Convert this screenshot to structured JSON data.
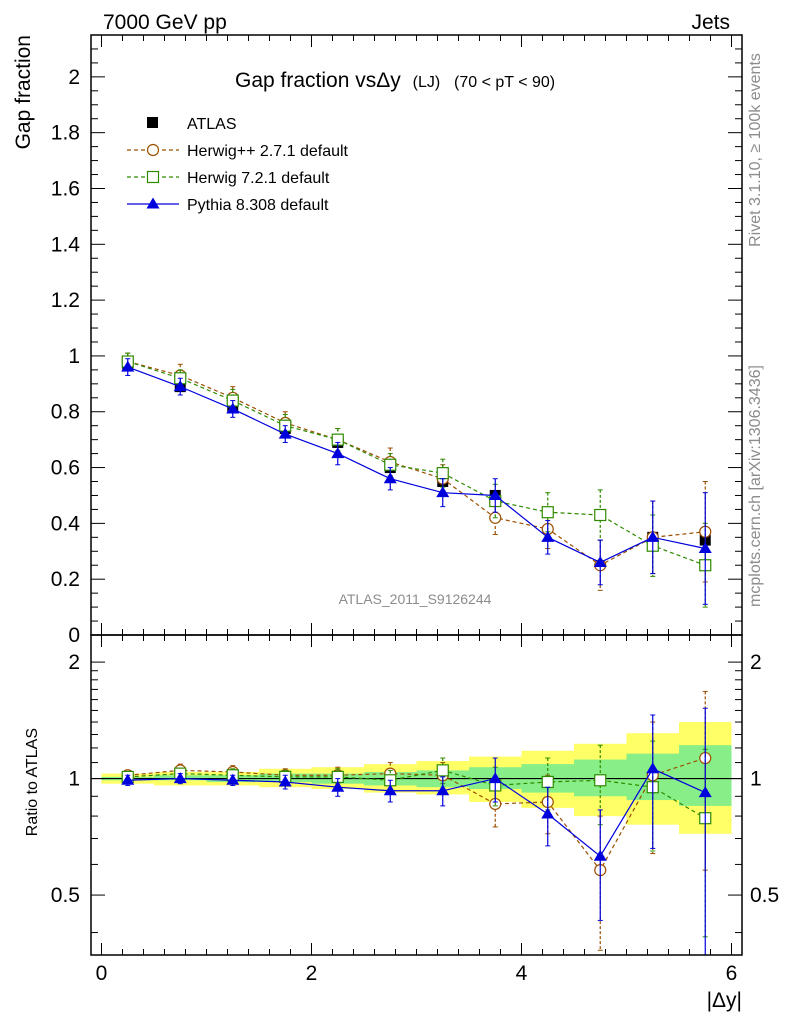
{
  "header": {
    "left": "7000 GeV pp",
    "right": "Jets"
  },
  "side_labels": {
    "rivet": "Rivet 3.1.10, ≥ 100k events",
    "mcplots": "mcplots.cern.ch [arXiv:1306.3436]"
  },
  "watermark": "ATLAS_2011_S9126244",
  "title_main": "Gap fraction vsΔy",
  "title_tag": "(LJ)",
  "title_range": "(70 < pT <  90)",
  "chart_data": [
    {
      "type": "line",
      "panel": "main",
      "ylabel": "Gap fraction",
      "xlim": [
        -0.1,
        6.1
      ],
      "ylim": [
        0,
        2.15
      ],
      "yticks": [
        "0",
        "0.2",
        "0.4",
        "0.6",
        "0.8",
        "1",
        "1.2",
        "1.4",
        "1.6",
        "1.8",
        "2"
      ],
      "legend_position": "top-left",
      "x": [
        0.25,
        0.75,
        1.25,
        1.75,
        2.25,
        2.75,
        3.25,
        3.75,
        4.25,
        4.75,
        5.25,
        5.75
      ],
      "series": [
        {
          "name": "ATLAS",
          "marker": "filled-square",
          "color": "#000000",
          "y": [
            0.97,
            0.89,
            0.82,
            0.74,
            0.69,
            0.6,
            0.55,
            0.5,
            0.44,
            0.43,
            0.35,
            0.34
          ],
          "err": [
            0.01,
            0.01,
            0.01,
            0.01,
            0.01,
            0.01,
            0.01,
            0.01,
            0.01,
            0.01,
            0.01,
            0.01
          ]
        },
        {
          "name": "Herwig++ 2.7.1 default",
          "marker": "open-circle",
          "color": "#9c4f00",
          "dashed": true,
          "y": [
            0.98,
            0.93,
            0.85,
            0.76,
            0.7,
            0.62,
            0.56,
            0.42,
            0.38,
            0.25,
            0.35,
            0.37
          ],
          "err": [
            0.03,
            0.04,
            0.04,
            0.04,
            0.04,
            0.05,
            0.05,
            0.06,
            0.07,
            0.09,
            0.13,
            0.18
          ]
        },
        {
          "name": "Herwig 7.2.1 default",
          "marker": "open-square",
          "color": "#2e8b00",
          "dashed": true,
          "y": [
            0.98,
            0.92,
            0.84,
            0.75,
            0.7,
            0.61,
            0.58,
            0.48,
            0.44,
            0.43,
            0.32,
            0.25
          ],
          "err": [
            0.03,
            0.03,
            0.04,
            0.04,
            0.04,
            0.04,
            0.05,
            0.06,
            0.07,
            0.09,
            0.11,
            0.15
          ]
        },
        {
          "name": "Pythia 8.308 default",
          "marker": "filled-triangle",
          "color": "#0000dd",
          "y": [
            0.96,
            0.89,
            0.81,
            0.72,
            0.65,
            0.56,
            0.51,
            0.5,
            0.35,
            0.26,
            0.35,
            0.31
          ],
          "err": [
            0.03,
            0.03,
            0.03,
            0.03,
            0.04,
            0.04,
            0.05,
            0.06,
            0.06,
            0.08,
            0.13,
            0.2
          ]
        }
      ]
    },
    {
      "type": "line",
      "panel": "ratio",
      "ylabel": "Ratio to ATLAS",
      "xlabel": "|Δy|",
      "xlim": [
        -0.1,
        6.1
      ],
      "ylim": [
        0.35,
        2.35
      ],
      "yscale": "log",
      "yticks": [
        "0.5",
        "1",
        "2"
      ],
      "xticks": [
        "0",
        "2",
        "4",
        "6"
      ],
      "x": [
        0.25,
        0.75,
        1.25,
        1.75,
        2.25,
        2.75,
        3.25,
        3.75,
        4.25,
        4.75,
        5.25,
        5.75
      ],
      "band_yellow": [
        [
          0.97,
          1.03
        ],
        [
          0.96,
          1.04
        ],
        [
          0.96,
          1.04
        ],
        [
          0.95,
          1.06
        ],
        [
          0.94,
          1.07
        ],
        [
          0.92,
          1.09
        ],
        [
          0.91,
          1.11
        ],
        [
          0.87,
          1.14
        ],
        [
          0.84,
          1.18
        ],
        [
          0.8,
          1.23
        ],
        [
          0.76,
          1.31
        ],
        [
          0.72,
          1.4
        ]
      ],
      "band_green": [
        [
          0.99,
          1.01
        ],
        [
          0.99,
          1.02
        ],
        [
          0.98,
          1.02
        ],
        [
          0.98,
          1.03
        ],
        [
          0.97,
          1.03
        ],
        [
          0.96,
          1.04
        ],
        [
          0.95,
          1.05
        ],
        [
          0.94,
          1.07
        ],
        [
          0.92,
          1.09
        ],
        [
          0.9,
          1.12
        ],
        [
          0.88,
          1.16
        ],
        [
          0.85,
          1.22
        ]
      ],
      "series": [
        {
          "name": "Herwig++ 2.7.1 default",
          "marker": "open-circle",
          "color": "#9c4f00",
          "dashed": true,
          "y": [
            1.02,
            1.05,
            1.04,
            1.02,
            1.02,
            1.03,
            1.02,
            0.86,
            0.87,
            0.58,
            1.02,
            1.13
          ],
          "err": [
            0.03,
            0.04,
            0.04,
            0.04,
            0.05,
            0.07,
            0.08,
            0.11,
            0.15,
            0.22,
            0.38,
            0.55
          ]
        },
        {
          "name": "Herwig 7.2.1 default",
          "marker": "open-square",
          "color": "#2e8b00",
          "dashed": true,
          "y": [
            1.01,
            1.03,
            1.02,
            1.01,
            1.01,
            0.99,
            1.05,
            0.96,
            0.98,
            0.99,
            0.95,
            0.79
          ],
          "err": [
            0.03,
            0.03,
            0.04,
            0.04,
            0.05,
            0.06,
            0.08,
            0.11,
            0.15,
            0.23,
            0.3,
            0.4
          ]
        },
        {
          "name": "Pythia 8.308 default",
          "marker": "filled-triangle",
          "color": "#0000dd",
          "y": [
            0.99,
            1.0,
            0.99,
            0.98,
            0.95,
            0.93,
            0.93,
            1.0,
            0.81,
            0.63,
            1.06,
            0.92
          ],
          "err": [
            0.03,
            0.03,
            0.03,
            0.04,
            0.05,
            0.06,
            0.08,
            0.13,
            0.14,
            0.2,
            0.4,
            0.6
          ]
        }
      ]
    }
  ]
}
